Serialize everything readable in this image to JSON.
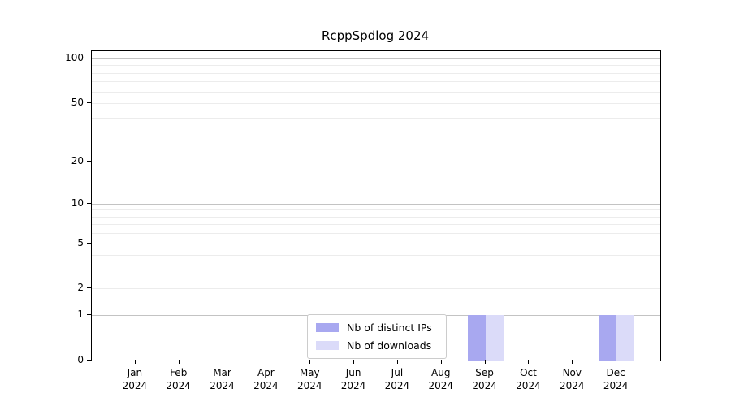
{
  "chart_data": {
    "type": "bar",
    "title": "RcppSpdlog 2024",
    "year": "2024",
    "categories": [
      "Jan",
      "Feb",
      "Mar",
      "Apr",
      "May",
      "Jun",
      "Jul",
      "Aug",
      "Sep",
      "Oct",
      "Nov",
      "Dec"
    ],
    "series": [
      {
        "name": "Nb of distinct IPs",
        "color": "#a8a8f0",
        "values": [
          0,
          0,
          0,
          0,
          0,
          0,
          0,
          0,
          1,
          0,
          0,
          1
        ]
      },
      {
        "name": "Nb of downloads",
        "color": "#dbdbf9",
        "values": [
          0,
          0,
          0,
          0,
          0,
          0,
          0,
          0,
          1,
          0,
          0,
          1
        ]
      }
    ],
    "y_ticks": [
      0,
      1,
      2,
      5,
      10,
      20,
      50,
      100
    ],
    "major_gridlines": [
      1,
      10,
      100
    ],
    "minor_gridlines": [
      2,
      3,
      4,
      5,
      6,
      7,
      8,
      9,
      20,
      30,
      40,
      50,
      60,
      70,
      80,
      90
    ],
    "scale": "log1p",
    "ylim": [
      0,
      112
    ],
    "legend_position": "lower center",
    "grid": true,
    "colors": {
      "major_grid": "#c3c3c3",
      "minor_grid": "#ececec",
      "axis": "#000000",
      "legend_border": "#cccccc",
      "background": "#ffffff"
    }
  }
}
